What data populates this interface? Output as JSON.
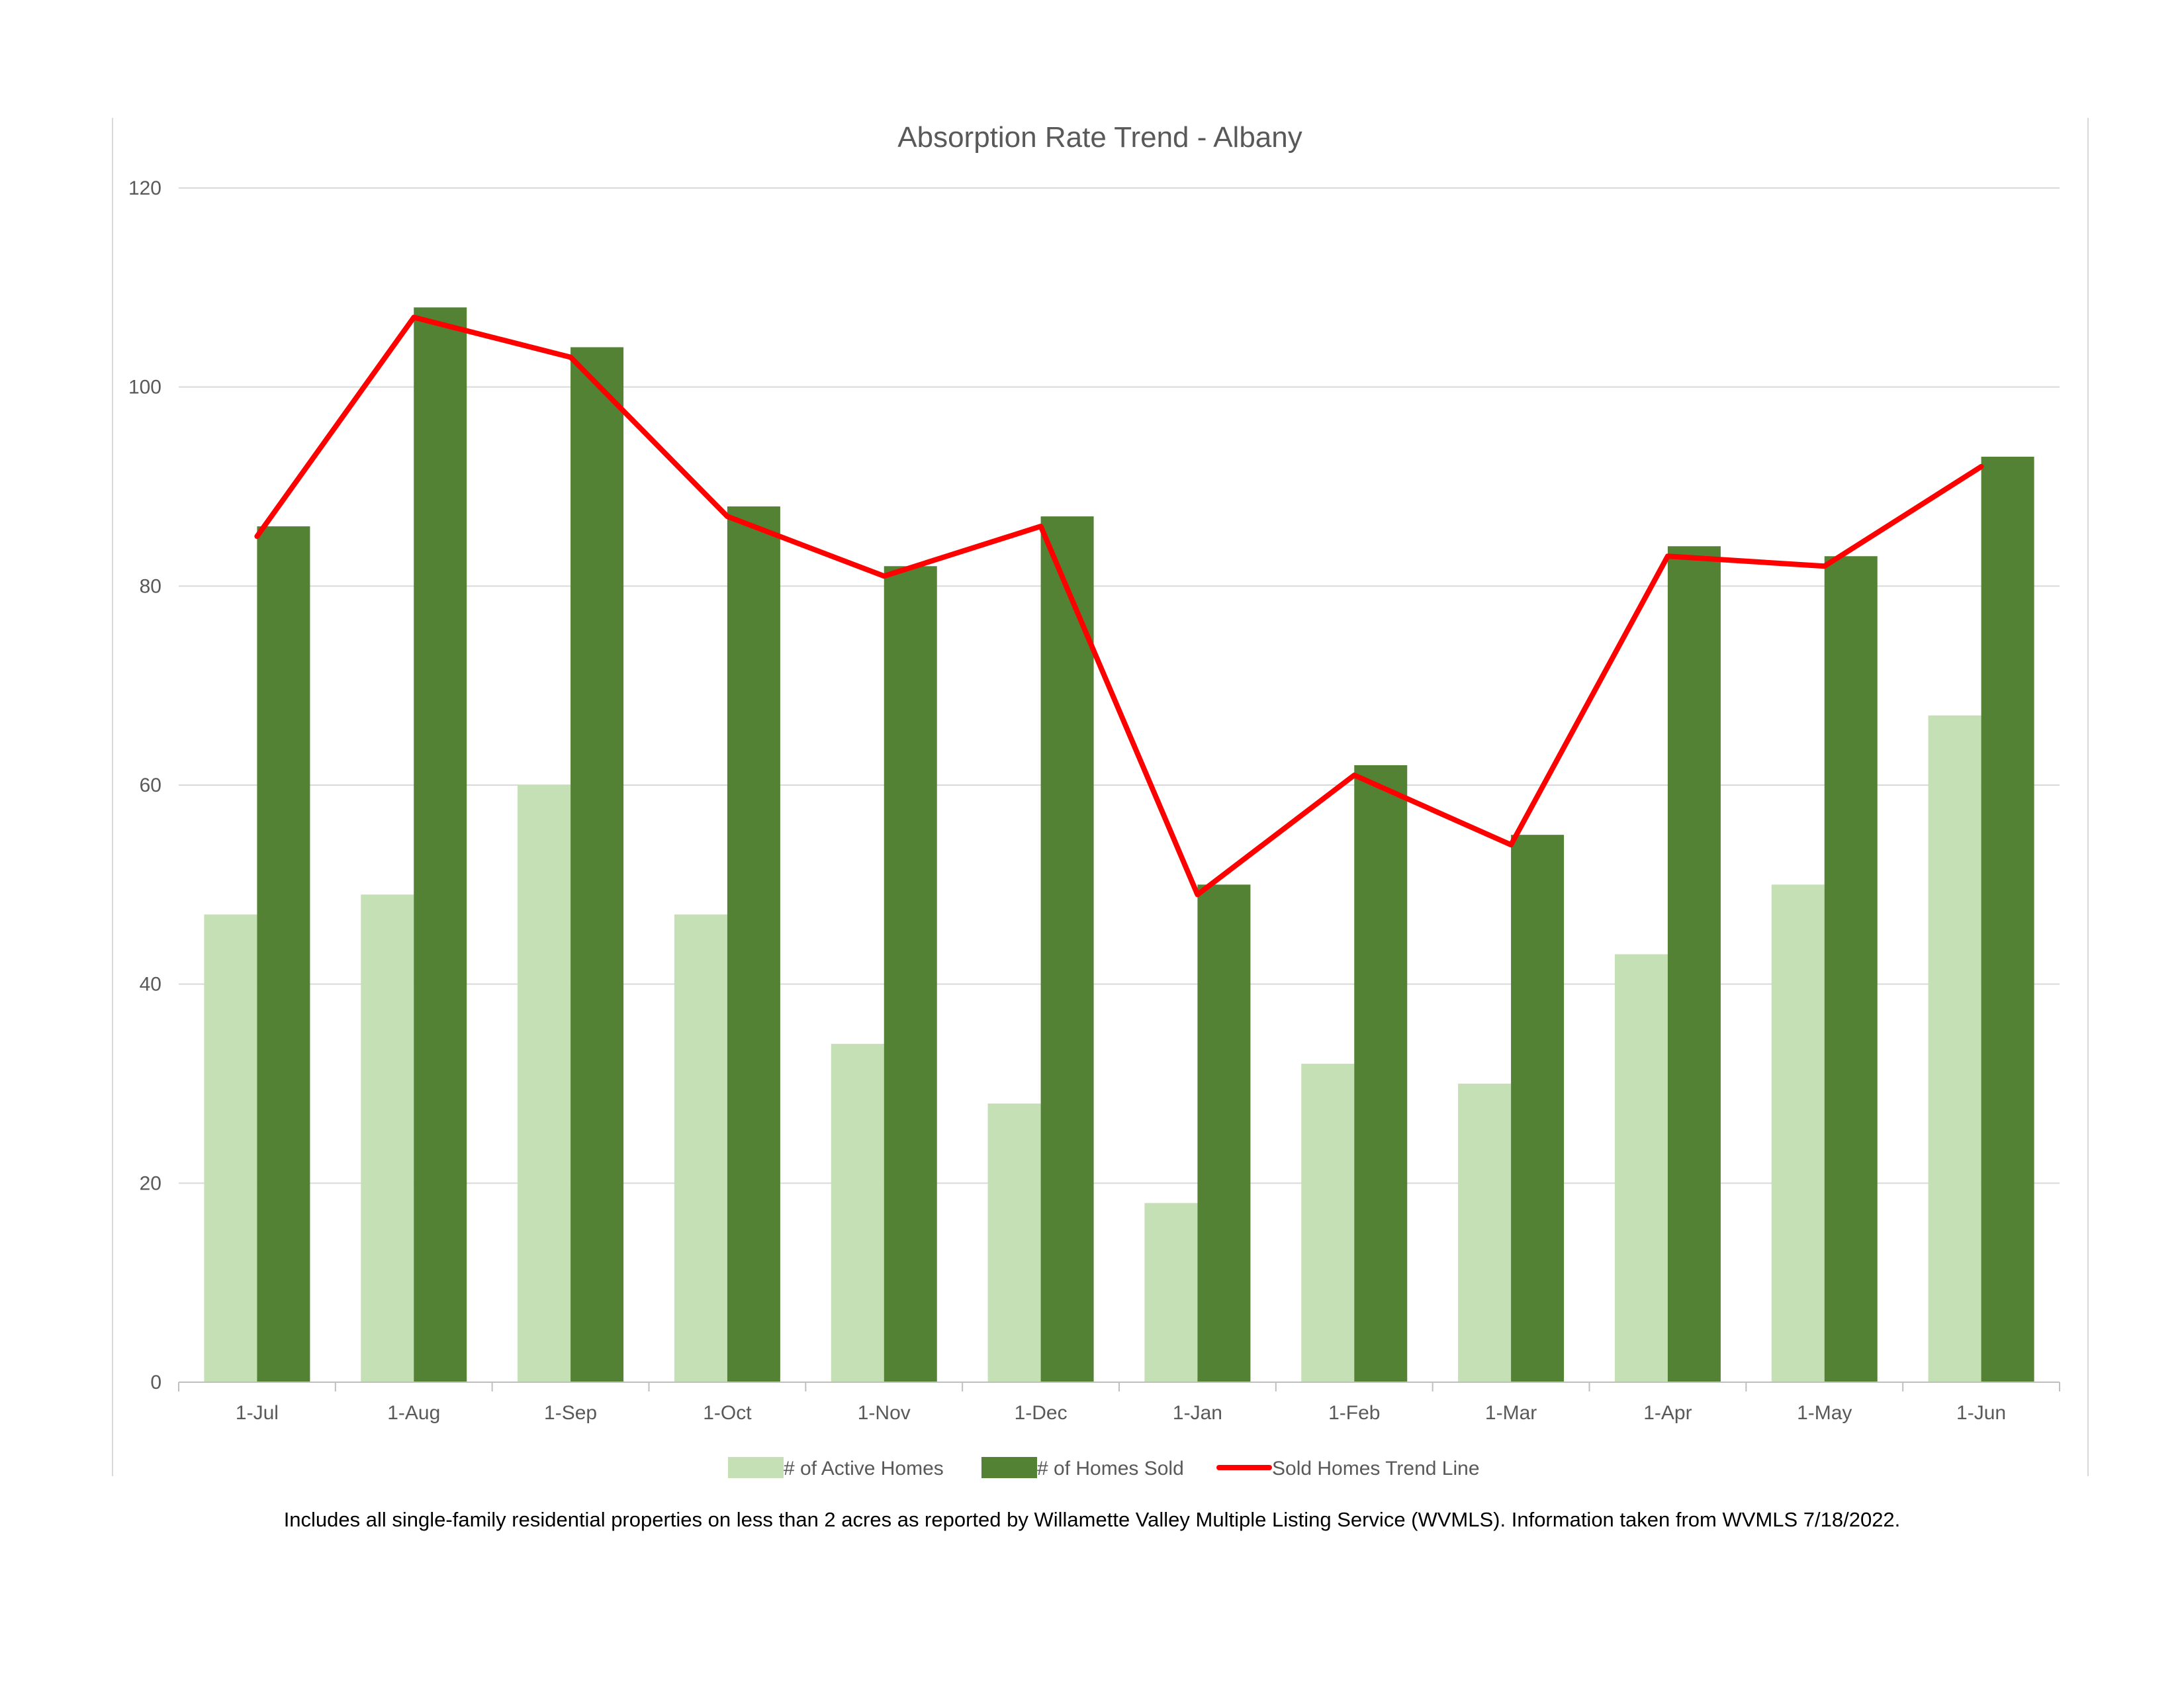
{
  "chart_data": {
    "type": "bar",
    "title": "Absorption Rate Trend - Albany",
    "xlabel": "",
    "ylabel": "",
    "ylim": [
      0,
      120
    ],
    "yticks": [
      0,
      20,
      40,
      60,
      80,
      100,
      120
    ],
    "grid": true,
    "legend_position": "bottom",
    "categories": [
      "1-Jul",
      "1-Aug",
      "1-Sep",
      "1-Oct",
      "1-Nov",
      "1-Dec",
      "1-Jan",
      "1-Feb",
      "1-Mar",
      "1-Apr",
      "1-May",
      "1-Jun"
    ],
    "series": [
      {
        "name": "# of Active Homes",
        "type": "bar",
        "color": "#c5e0b4",
        "values": [
          47,
          49,
          60,
          47,
          34,
          28,
          18,
          32,
          30,
          43,
          50,
          67
        ]
      },
      {
        "name": "# of Homes Sold",
        "type": "bar",
        "color": "#548235",
        "values": [
          86,
          108,
          104,
          88,
          82,
          87,
          50,
          62,
          55,
          84,
          83,
          93
        ]
      },
      {
        "name": "Sold Homes Trend Line",
        "type": "line",
        "color": "#ff0000",
        "values": [
          85,
          107,
          103,
          87,
          81,
          86,
          49,
          61,
          54,
          83,
          82,
          92
        ]
      }
    ]
  },
  "footnote": "Includes all single-family residential properties on less than 2 acres as reported by Willamette Valley Multiple Listing Service (WVMLS). Information taken from WVMLS 7/18/2022."
}
